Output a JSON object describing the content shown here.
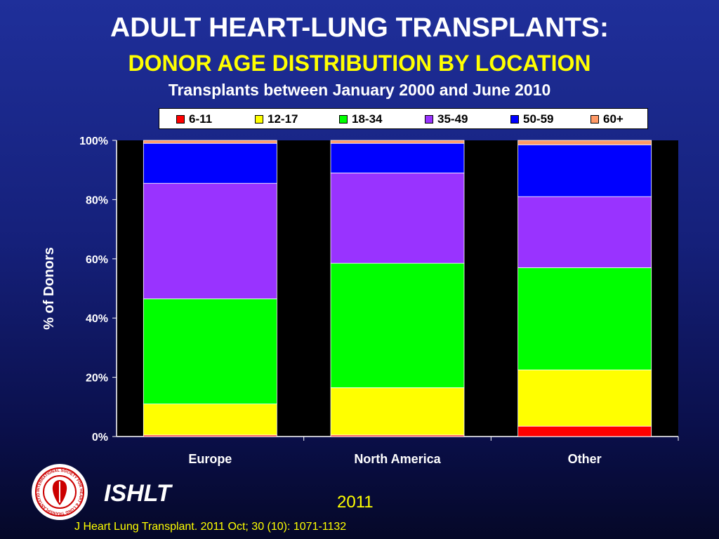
{
  "header": {
    "title": "ADULT HEART-LUNG TRANSPLANTS:",
    "subtitle": "DONOR AGE DISTRIBUTION BY LOCATION",
    "subtitle2": "Transplants between January 2000 and June 2010"
  },
  "chart_data": {
    "type": "bar",
    "stacked": true,
    "percent": true,
    "categories": [
      "Europe",
      "North America",
      "Other"
    ],
    "ylabel": "% of Donors",
    "xlabel": "",
    "ylim": [
      0,
      100
    ],
    "y_ticks": [
      "0%",
      "20%",
      "40%",
      "60%",
      "80%",
      "100%"
    ],
    "legend_position": "top",
    "series": [
      {
        "name": "6-11",
        "color": "#ff0000",
        "values": [
          0.5,
          0.5,
          3.5
        ]
      },
      {
        "name": "12-17",
        "color": "#ffff00",
        "values": [
          10.5,
          16,
          19
        ]
      },
      {
        "name": "18-34",
        "color": "#00ff00",
        "values": [
          35.5,
          42,
          34.5
        ]
      },
      {
        "name": "35-49",
        "color": "#9933ff",
        "values": [
          39,
          30.5,
          24
        ]
      },
      {
        "name": "50-59",
        "color": "#0000ff",
        "values": [
          13.5,
          10,
          17.5
        ]
      },
      {
        "name": "60+",
        "color": "#ff9966",
        "values": [
          1,
          1,
          1.5
        ]
      }
    ]
  },
  "footer": {
    "brand": "ISHLT",
    "year": "2011",
    "citation": "J Heart Lung Transplant. 2011 Oct; 30 (10): 1071-1132",
    "logo_text": "INTERNATIONAL SOCIETY FOR HEART & LUNG TRANSPLANTATION"
  }
}
